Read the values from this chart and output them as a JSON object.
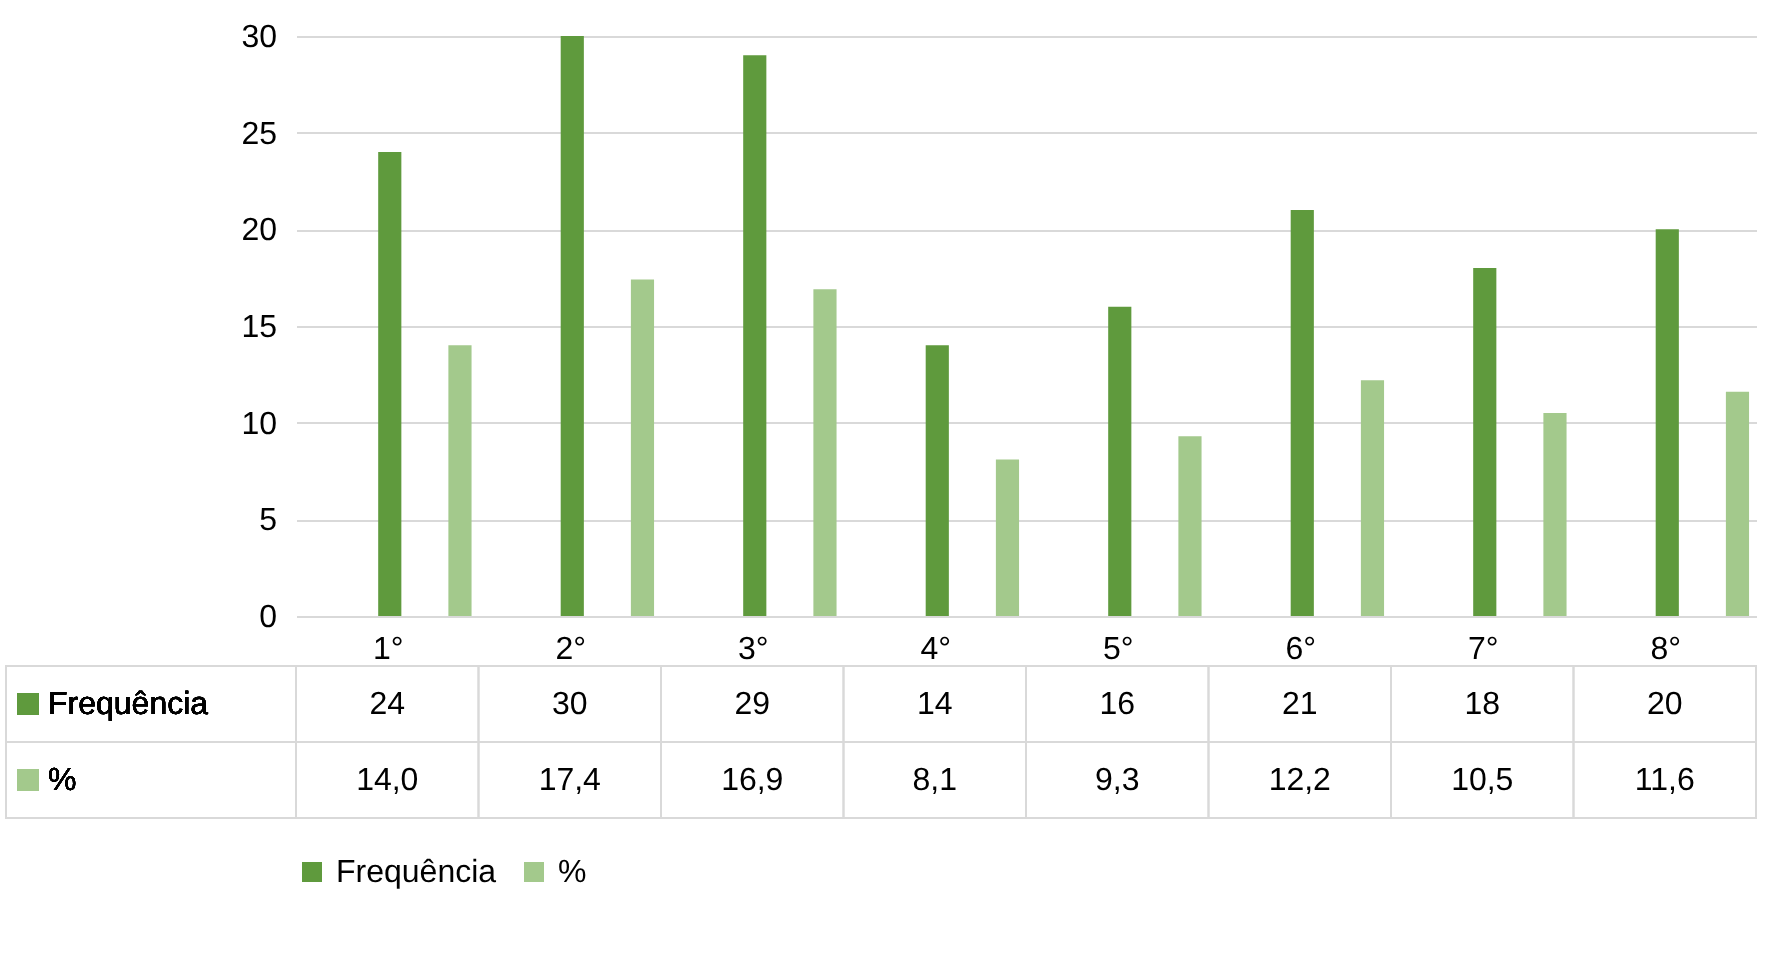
{
  "chart_data": {
    "type": "bar",
    "categories": [
      "1°",
      "2°",
      "3°",
      "4°",
      "5°",
      "6°",
      "7°",
      "8°"
    ],
    "series": [
      {
        "name": "Frequência",
        "color": "#5f9a3d",
        "values": [
          24,
          30,
          29,
          14,
          16,
          21,
          18,
          20
        ],
        "value_labels": [
          "24",
          "30",
          "29",
          "14",
          "16",
          "21",
          "18",
          "20"
        ]
      },
      {
        "name": "%",
        "color": "#a3c98c",
        "values": [
          14.0,
          17.4,
          16.9,
          8.1,
          9.3,
          12.2,
          10.5,
          11.6
        ],
        "value_labels": [
          "14,0",
          "17,4",
          "16,9",
          "8,1",
          "9,3",
          "12,2",
          "10,5",
          "11,6"
        ]
      }
    ],
    "ylim": [
      0,
      30
    ],
    "yticks": [
      0,
      5,
      10,
      15,
      20,
      25,
      30
    ],
    "grid": "y",
    "legend": "bottom"
  }
}
